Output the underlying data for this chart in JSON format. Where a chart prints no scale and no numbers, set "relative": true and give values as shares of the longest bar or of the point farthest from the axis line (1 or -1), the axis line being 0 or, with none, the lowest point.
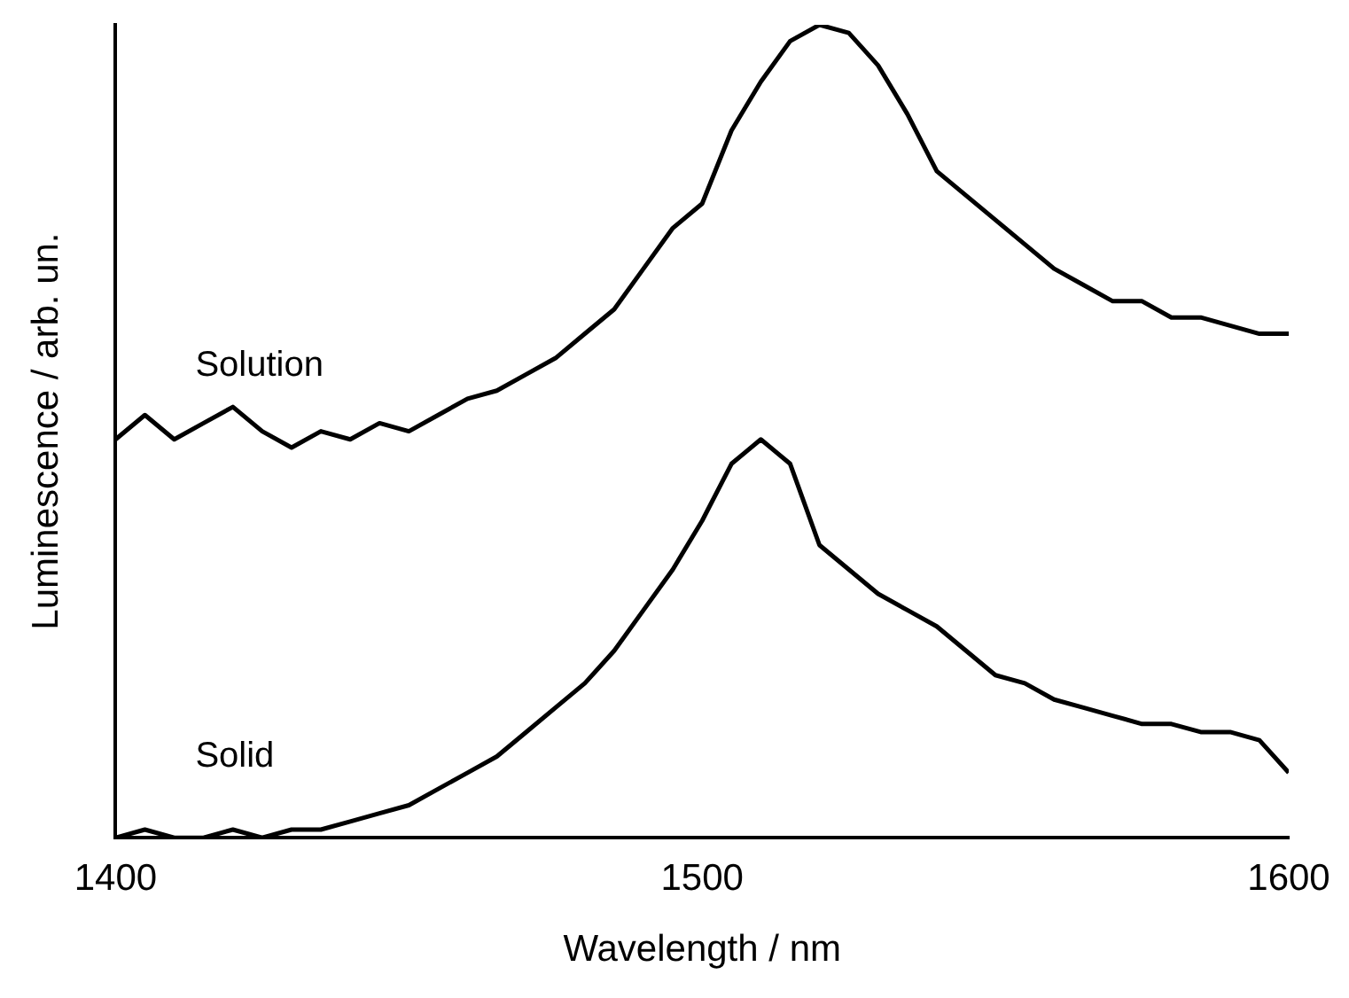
{
  "chart_data": {
    "type": "line",
    "xlabel": "Wavelength / nm",
    "ylabel": "Luminescence / arb. un.",
    "relative": true,
    "x": [
      1400,
      1405,
      1410,
      1415,
      1420,
      1425,
      1430,
      1435,
      1440,
      1445,
      1450,
      1455,
      1460,
      1465,
      1470,
      1475,
      1480,
      1485,
      1490,
      1495,
      1500,
      1505,
      1510,
      1515,
      1520,
      1525,
      1530,
      1535,
      1540,
      1545,
      1550,
      1555,
      1560,
      1565,
      1570,
      1575,
      1580,
      1585,
      1590,
      1595,
      1600
    ],
    "xlim": [
      1400,
      1600
    ],
    "xticks": [
      1400,
      1500,
      1600
    ],
    "grid": false,
    "legend": false,
    "marker": "none",
    "line_style": "solid",
    "series": [
      {
        "name": "Solution",
        "color": "#000000",
        "values": [
          0.49,
          0.52,
          0.49,
          0.51,
          0.53,
          0.5,
          0.48,
          0.5,
          0.49,
          0.51,
          0.5,
          0.52,
          0.54,
          0.55,
          0.57,
          0.59,
          0.62,
          0.65,
          0.7,
          0.75,
          0.78,
          0.87,
          0.93,
          0.98,
          1.0,
          0.99,
          0.95,
          0.89,
          0.82,
          0.79,
          0.76,
          0.73,
          0.7,
          0.68,
          0.66,
          0.66,
          0.64,
          0.64,
          0.63,
          0.62,
          0.62
        ]
      },
      {
        "name": "Solid",
        "color": "#000000",
        "values": [
          0.0,
          0.01,
          0.0,
          0.0,
          0.01,
          0.0,
          0.01,
          0.01,
          0.02,
          0.03,
          0.04,
          0.06,
          0.08,
          0.1,
          0.13,
          0.16,
          0.19,
          0.23,
          0.28,
          0.33,
          0.39,
          0.46,
          0.49,
          0.46,
          0.36,
          0.33,
          0.3,
          0.28,
          0.26,
          0.23,
          0.2,
          0.19,
          0.17,
          0.16,
          0.15,
          0.14,
          0.14,
          0.13,
          0.13,
          0.12,
          0.08
        ]
      }
    ]
  }
}
